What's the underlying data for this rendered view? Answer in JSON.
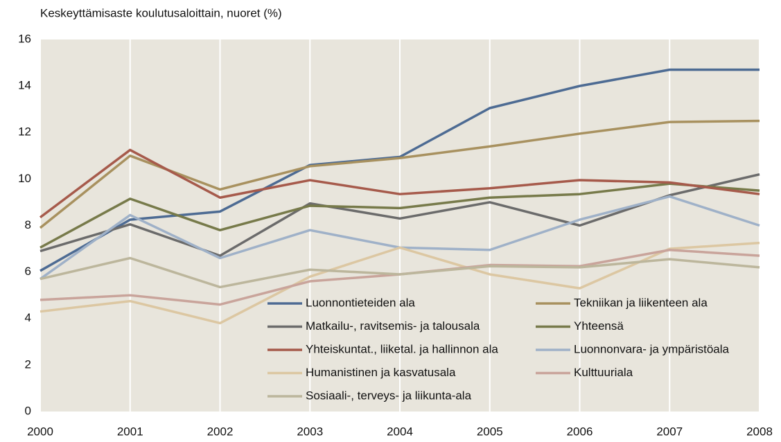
{
  "chart_data": {
    "type": "line",
    "title": "Keskeyttämisaste koulutusaloittain, nuoret (%)",
    "x": [
      2000,
      2001,
      2002,
      2003,
      2004,
      2005,
      2006,
      2007,
      2008
    ],
    "xlim": [
      2000,
      2008
    ],
    "xticks": [
      2000,
      2001,
      2002,
      2003,
      2004,
      2005,
      2006,
      2007,
      2008
    ],
    "ylim": [
      0,
      16
    ],
    "yticks": [
      0,
      2,
      4,
      6,
      8,
      10,
      12,
      14,
      16
    ],
    "grid": "x",
    "legend": "inside-bottom",
    "series": [
      {
        "name": "Luonnontieteiden ala",
        "color": "#4d6b93",
        "values": [
          6.05,
          8.25,
          8.6,
          10.6,
          10.95,
          13.05,
          14.0,
          14.7,
          14.7
        ]
      },
      {
        "name": "Tekniikan ja liikenteen ala",
        "color": "#a8915f",
        "values": [
          7.9,
          11.0,
          9.55,
          10.55,
          10.9,
          11.4,
          11.95,
          12.45,
          12.5
        ]
      },
      {
        "name": "Matkailu-, ravitsemis- ja talousala",
        "color": "#6b6b6b",
        "values": [
          6.9,
          8.05,
          6.7,
          8.95,
          8.3,
          9.0,
          8.0,
          9.3,
          10.2
        ]
      },
      {
        "name": "Yhteensä",
        "color": "#777a4a",
        "values": [
          7.05,
          9.15,
          7.8,
          8.85,
          8.75,
          9.2,
          9.35,
          9.8,
          9.5
        ]
      },
      {
        "name": "Yhteiskuntat., liiketal. ja hallinnon ala",
        "color": "#a65a4b",
        "values": [
          8.35,
          11.25,
          9.2,
          9.95,
          9.35,
          9.6,
          9.95,
          9.85,
          9.35
        ]
      },
      {
        "name": "Luonnonvara- ja ympäristöala",
        "color": "#9fb1c8",
        "values": [
          5.7,
          8.45,
          6.6,
          7.8,
          7.05,
          6.95,
          8.25,
          9.25,
          8.0
        ]
      },
      {
        "name": "Humanistinen ja kasvatusala",
        "color": "#dcc7a2",
        "values": [
          4.3,
          4.75,
          3.8,
          5.8,
          7.05,
          5.9,
          5.3,
          7.0,
          7.25
        ]
      },
      {
        "name": "Kulttuuriala",
        "color": "#c9a49b",
        "values": [
          4.8,
          5.0,
          4.6,
          5.6,
          5.9,
          6.3,
          6.25,
          6.95,
          6.7
        ]
      },
      {
        "name": "Sosiaali-, terveys- ja liikunta-ala",
        "color": "#bcb69c",
        "values": [
          5.7,
          6.6,
          5.35,
          6.1,
          5.9,
          6.25,
          6.2,
          6.55,
          6.2
        ]
      }
    ]
  }
}
